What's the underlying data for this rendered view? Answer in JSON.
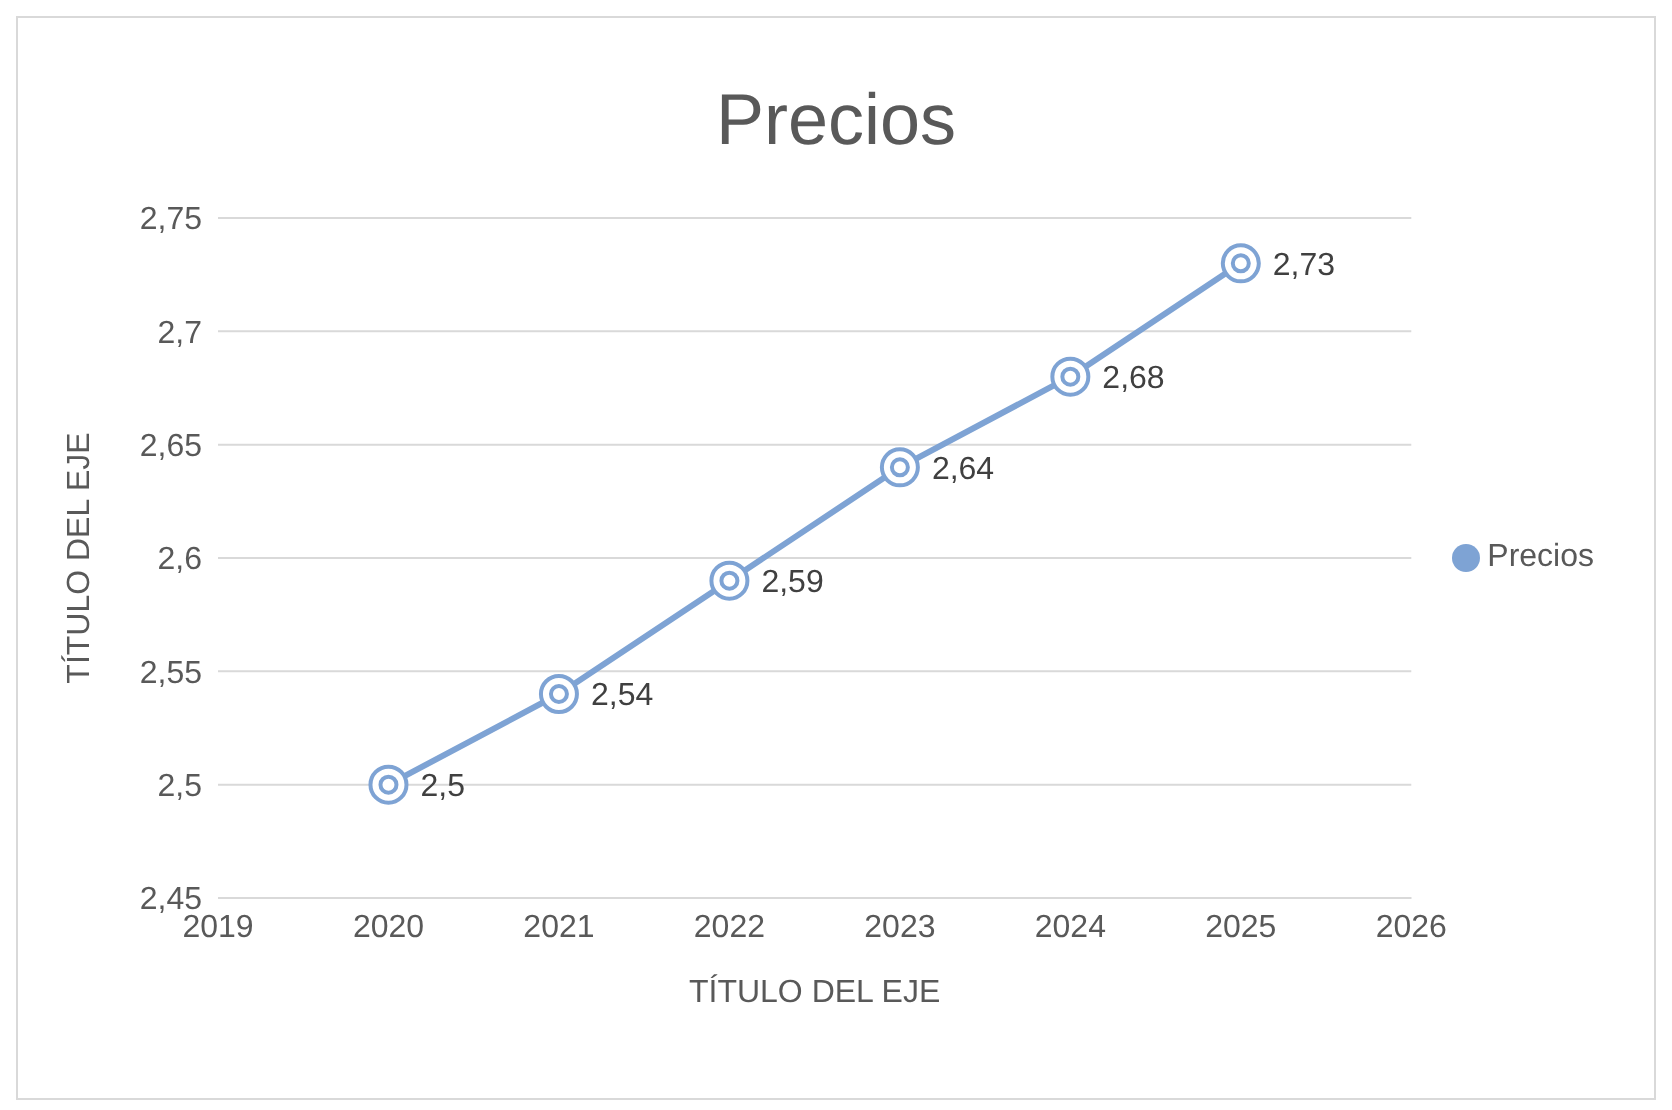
{
  "chart_data": {
    "type": "line",
    "title": "Precios",
    "xlabel": "TÍTULO DEL EJE",
    "ylabel": "TÍTULO DEL EJE",
    "x": [
      2020,
      2021,
      2022,
      2023,
      2024,
      2025
    ],
    "series": [
      {
        "name": "Precios",
        "color": "#7ea3d4",
        "values": [
          2.5,
          2.54,
          2.59,
          2.64,
          2.68,
          2.73
        ],
        "value_labels": [
          "2,5",
          "2,54",
          "2,59",
          "2,64",
          "2,68",
          "2,73"
        ]
      }
    ],
    "xlim": [
      2019,
      2026
    ],
    "xticks": [
      2019,
      2020,
      2021,
      2022,
      2023,
      2024,
      2025,
      2026
    ],
    "ylim": [
      2.45,
      2.75
    ],
    "yticks": [
      {
        "value": 2.45,
        "label": "2,45"
      },
      {
        "value": 2.5,
        "label": "2,5"
      },
      {
        "value": 2.55,
        "label": "2,55"
      },
      {
        "value": 2.6,
        "label": "2,6"
      },
      {
        "value": 2.65,
        "label": "2,65"
      },
      {
        "value": 2.7,
        "label": "2,7"
      },
      {
        "value": 2.75,
        "label": "2,75"
      }
    ],
    "grid": "y",
    "legend": "right",
    "marker": "circle",
    "line_style": "solid"
  }
}
